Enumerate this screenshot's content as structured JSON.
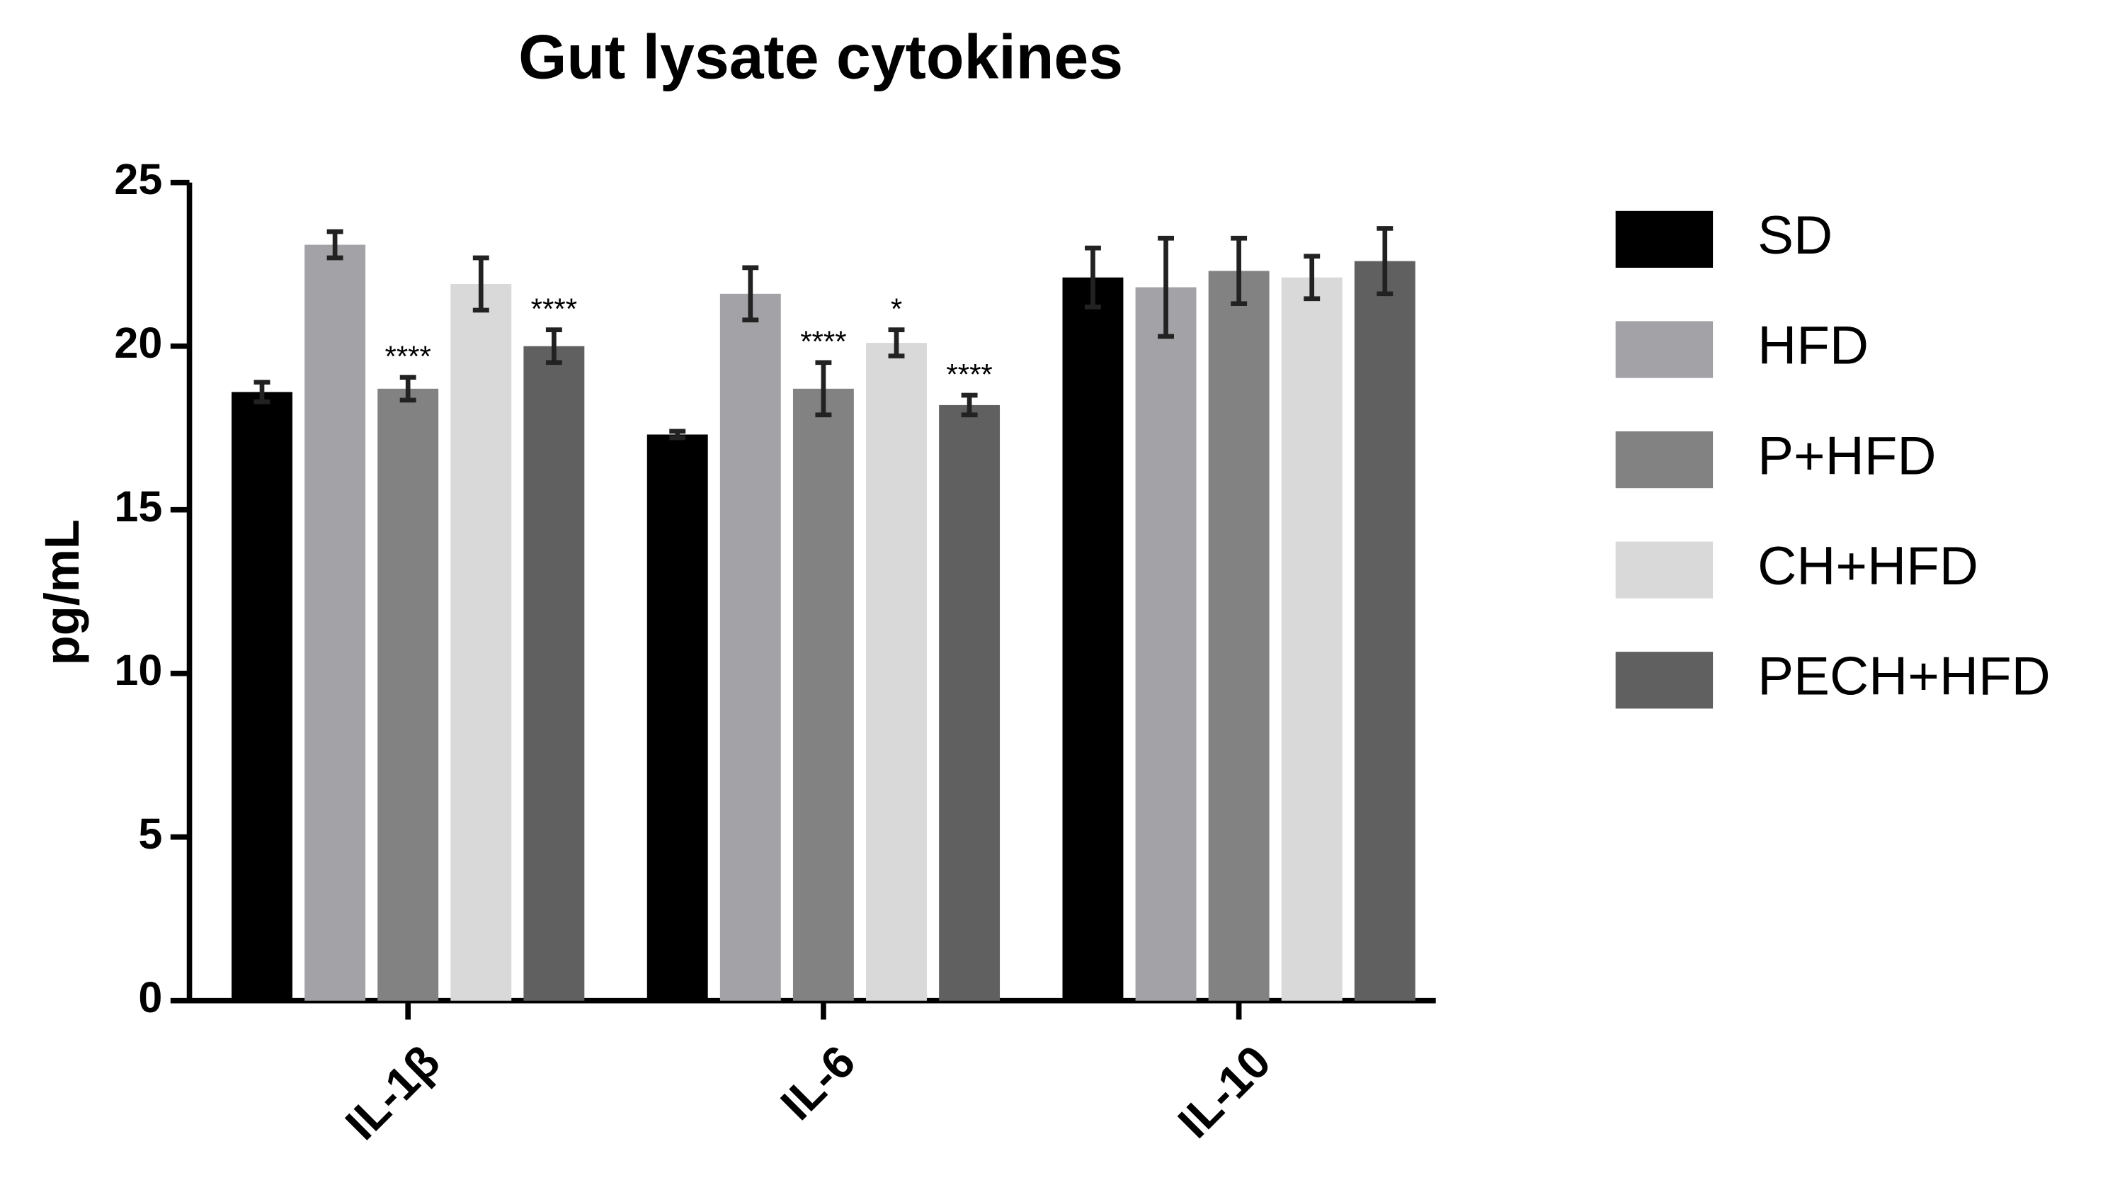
{
  "chart_data": {
    "type": "bar",
    "title": "Gut lysate cytokines",
    "y_label": "pg/mL",
    "categories": [
      "IL-1β",
      "IL-6",
      "IL-10"
    ],
    "series": [
      {
        "name": "SD",
        "color": "#000000",
        "values": [
          18.6,
          17.3,
          22.1
        ],
        "errors": [
          0.3,
          0.1,
          0.9
        ],
        "annotations": [
          null,
          null,
          null
        ]
      },
      {
        "name": "HFD",
        "color": "#a3a3a7",
        "values": [
          23.1,
          21.6,
          21.8
        ],
        "errors": [
          0.4,
          0.8,
          1.5
        ],
        "annotations": [
          null,
          null,
          null
        ]
      },
      {
        "name": "P+HFD",
        "color": "#828282",
        "values": [
          18.7,
          18.7,
          22.3
        ],
        "errors": [
          0.35,
          0.8,
          1.0
        ],
        "annotations": [
          "****",
          "****",
          null
        ]
      },
      {
        "name": "CH+HFD",
        "color": "#d9d9d9",
        "values": [
          21.9,
          20.1,
          22.1
        ],
        "errors": [
          0.8,
          0.4,
          0.65
        ],
        "annotations": [
          null,
          "*",
          null
        ]
      },
      {
        "name": "PECH+HFD",
        "color": "#606060",
        "values": [
          20.0,
          18.2,
          22.6
        ],
        "errors": [
          0.5,
          0.3,
          1.0
        ],
        "annotations": [
          "****",
          "****",
          null
        ]
      }
    ],
    "ylim": [
      0,
      25
    ],
    "yticks": [
      0,
      5,
      10,
      15,
      20,
      25
    ],
    "grid": false,
    "legend": "right"
  }
}
